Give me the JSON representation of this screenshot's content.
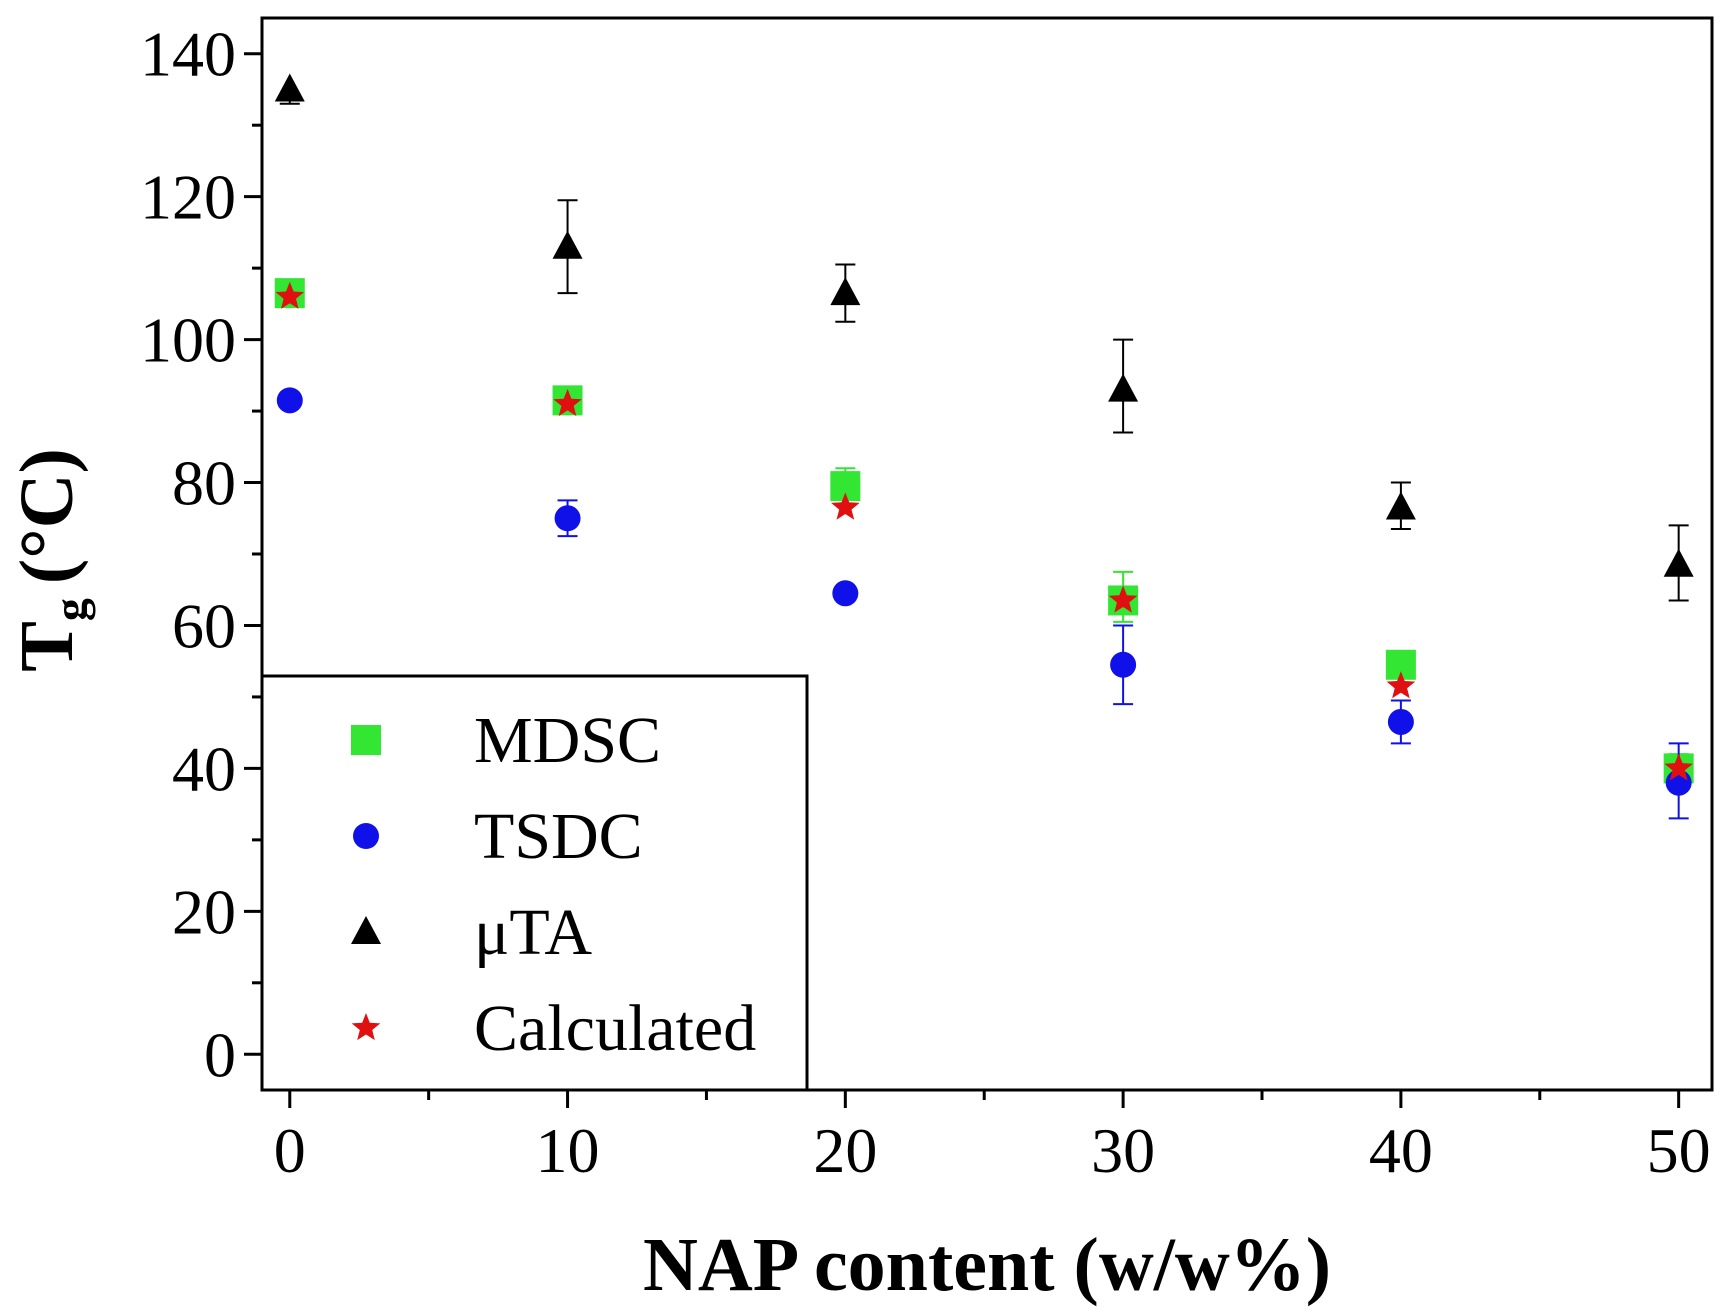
{
  "chart_data": {
    "type": "scatter",
    "title": "",
    "xlabel": "NAP content (w/w%)",
    "ylabel_main": "T",
    "ylabel_sub": "g",
    "ylabel_unit": "(°C)",
    "xlim": [
      -1,
      51.2
    ],
    "ylim": [
      -5,
      145
    ],
    "x_ticks": [
      0,
      10,
      20,
      30,
      40,
      50
    ],
    "x_tick_labels": [
      "0",
      "10",
      "20",
      "30",
      "40",
      "50"
    ],
    "y_ticks": [
      0,
      20,
      40,
      60,
      80,
      100,
      120,
      140
    ],
    "y_tick_labels": [
      "0",
      "20",
      "40",
      "60",
      "80",
      "100",
      "120",
      "140"
    ],
    "legend_position": "bottom-left",
    "x": [
      0,
      10,
      20,
      30,
      40,
      50
    ],
    "series": [
      {
        "name": "MDSC",
        "marker": "square",
        "color": "#33e633",
        "values": [
          106.5,
          91.5,
          79.5,
          63.5,
          54.5,
          40
        ],
        "err_low": [
          1,
          1,
          1.5,
          3,
          1.5,
          2
        ],
        "err_high": [
          1,
          1,
          2.5,
          4,
          1.5,
          2
        ]
      },
      {
        "name": "TSDC",
        "marker": "circle",
        "color": "#1010e8",
        "values": [
          91.5,
          75,
          64.5,
          54.5,
          46.5,
          38
        ],
        "err_low": [
          0,
          2.5,
          0,
          5.5,
          3,
          5
        ],
        "err_high": [
          0,
          2.5,
          0,
          5.5,
          3,
          5.5
        ]
      },
      {
        "name": "μTA",
        "marker": "triangle",
        "color": "#000000",
        "values": [
          135,
          113,
          106.5,
          93,
          76.5,
          68.5
        ],
        "err_low": [
          2,
          6.5,
          4,
          6,
          3,
          5
        ],
        "err_high": [
          0,
          6.5,
          4,
          7,
          3.5,
          5.5
        ]
      },
      {
        "name": "Calculated",
        "marker": "star",
        "color": "#e01010",
        "values": [
          106,
          91,
          76.5,
          63.5,
          51.5,
          40
        ],
        "err_low": [
          0,
          0,
          0,
          0,
          0,
          0
        ],
        "err_high": [
          0,
          0,
          0,
          0,
          0,
          0
        ]
      }
    ]
  }
}
